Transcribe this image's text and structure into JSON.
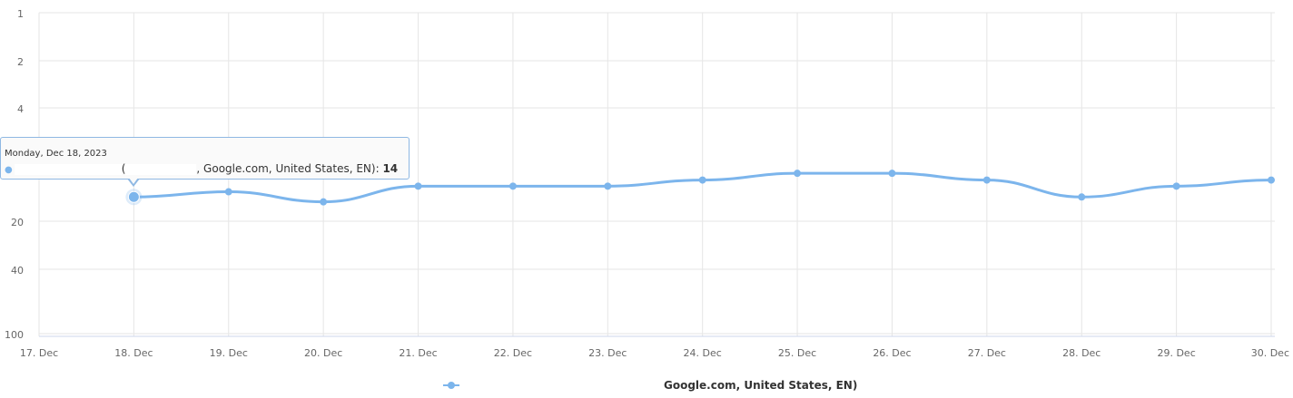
{
  "chart_data": {
    "type": "line",
    "x": [
      "17. Dec",
      "18. Dec",
      "19. Dec",
      "20. Dec",
      "21. Dec",
      "22. Dec",
      "23. Dec",
      "24. Dec",
      "25. Dec",
      "26. Dec",
      "27. Dec",
      "28. Dec",
      "29. Dec",
      "30. Dec"
    ],
    "y_ticks": [
      1,
      2,
      4,
      20,
      40,
      100
    ],
    "y_scale": "log",
    "y_reversed": true,
    "ylim": [
      1,
      100
    ],
    "grid": true,
    "series": [
      {
        "name": "Google.com, United States, EN)",
        "color": "#7cb5ec",
        "values": [
          null,
          14,
          13,
          15,
          12,
          12,
          12,
          11,
          10,
          10,
          11,
          14,
          12,
          11
        ]
      }
    ],
    "tooltip": {
      "date": "Monday, Dec 18, 2023",
      "text_open": "(",
      "text_mid": ", Google.com, United States, EN): ",
      "value": "14"
    },
    "legend": {
      "label": "Google.com, United States, EN)",
      "placement": "bottom-center"
    }
  }
}
